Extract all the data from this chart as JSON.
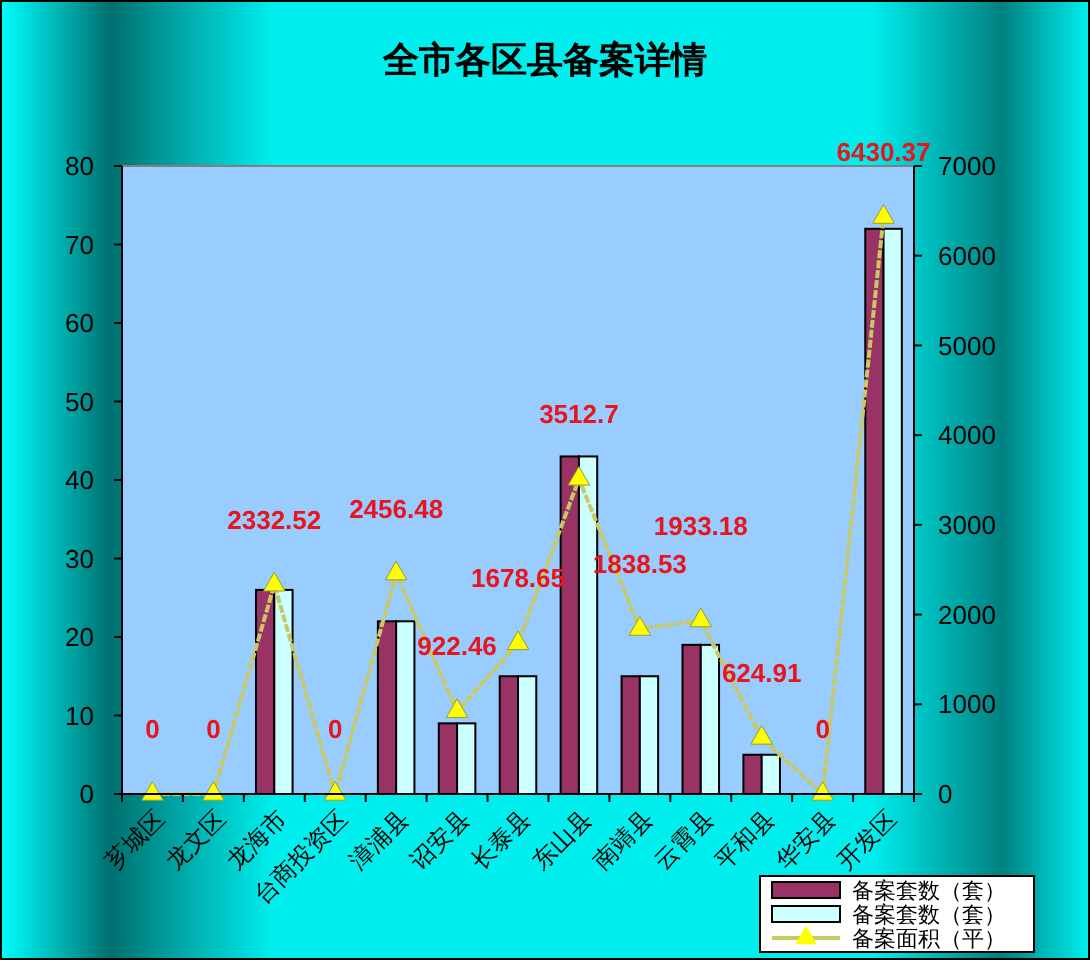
{
  "chart_data": {
    "type": "bar",
    "title": "全市各区县备案详情",
    "categories": [
      "芗城区",
      "龙文区",
      "龙海市",
      "台商投资区",
      "漳浦县",
      "诏安县",
      "长泰县",
      "东山县",
      "南靖县",
      "云霄县",
      "平和县",
      "华安县",
      "开发区"
    ],
    "series": [
      {
        "name": "备案套数（套）",
        "color": "#993366",
        "values": [
          0,
          0,
          26,
          0,
          22,
          9,
          15,
          43,
          15,
          19,
          5,
          0,
          72
        ]
      },
      {
        "name": "备案套数（套）",
        "color": "#ccffff",
        "values": [
          0,
          0,
          26,
          0,
          22,
          9,
          15,
          43,
          15,
          19,
          5,
          0,
          72
        ]
      },
      {
        "name": "备案面积（平）",
        "type": "line",
        "axis": "y2",
        "line_style": "dashed",
        "color": "#c8c864",
        "marker": "triangle",
        "values": [
          0,
          0,
          2332.52,
          0,
          2456.48,
          922.46,
          1678.65,
          3512.7,
          1838.53,
          1933.18,
          624.91,
          0,
          6430.37
        ],
        "value_labels": [
          "0",
          "0",
          "2332.52",
          "0",
          "2456.48",
          "922.46",
          "1678.65",
          "3512.7",
          "1838.53",
          "1933.18",
          "624.91",
          "0",
          "6430.37"
        ]
      }
    ],
    "ylim": [
      0,
      80
    ],
    "yticks": [
      0,
      10,
      20,
      30,
      40,
      50,
      60,
      70,
      80
    ],
    "y2lim": [
      0,
      7000
    ],
    "y2ticks": [
      0,
      1000,
      2000,
      3000,
      4000,
      5000,
      6000,
      7000
    ],
    "grid": false,
    "legend": "bottom right"
  }
}
